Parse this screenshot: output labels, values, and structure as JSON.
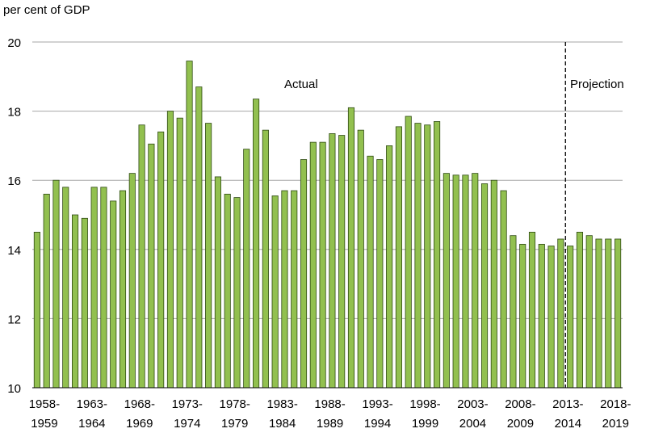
{
  "chart_data": {
    "type": "bar",
    "ylabel": "per cent of GDP",
    "ylim": [
      10,
      20
    ],
    "yticks": [
      10,
      12,
      14,
      16,
      18,
      20
    ],
    "grid": true,
    "bar_color": "#92C04F",
    "bar_edge_color": "#2E4A12",
    "annotations": {
      "actual": "Actual",
      "projection": "Projection"
    },
    "divider_after_category": "2013-2014",
    "categories": [
      "1958-1959",
      "1959-1960",
      "1960-1961",
      "1961-1962",
      "1962-1963",
      "1963-1964",
      "1964-1965",
      "1965-1966",
      "1966-1967",
      "1967-1968",
      "1968-1969",
      "1969-1970",
      "1970-1971",
      "1971-1972",
      "1972-1973",
      "1973-1974",
      "1974-1975",
      "1975-1976",
      "1976-1977",
      "1977-1978",
      "1978-1979",
      "1979-1980",
      "1980-1981",
      "1981-1982",
      "1982-1983",
      "1983-1984",
      "1984-1985",
      "1985-1986",
      "1986-1987",
      "1987-1988",
      "1988-1989",
      "1989-1990",
      "1990-1991",
      "1991-1992",
      "1992-1993",
      "1993-1994",
      "1994-1995",
      "1995-1996",
      "1996-1997",
      "1997-1998",
      "1998-1999",
      "1999-2000",
      "2000-2001",
      "2001-2002",
      "2002-2003",
      "2003-2004",
      "2004-2005",
      "2005-2006",
      "2006-2007",
      "2007-2008",
      "2008-2009",
      "2009-2010",
      "2010-2011",
      "2011-2012",
      "2012-2013",
      "2013-2014",
      "2014-2015",
      "2015-2016",
      "2016-2017",
      "2017-2018",
      "2018-2019",
      "2019-2020"
    ],
    "values": [
      14.5,
      15.6,
      16.0,
      15.8,
      15.0,
      14.9,
      15.8,
      15.8,
      15.4,
      15.7,
      16.2,
      17.6,
      17.05,
      17.4,
      18.0,
      17.8,
      19.45,
      18.7,
      17.65,
      16.1,
      15.6,
      15.5,
      16.9,
      18.35,
      17.45,
      15.55,
      15.7,
      15.7,
      16.6,
      17.1,
      17.1,
      17.35,
      17.3,
      18.1,
      17.45,
      16.7,
      16.6,
      17.0,
      17.55,
      17.85,
      17.65,
      17.6,
      17.7,
      16.2,
      16.15,
      16.15,
      16.2,
      15.9,
      16.0,
      15.7,
      14.4,
      14.15,
      14.5,
      14.15,
      14.1,
      14.3,
      14.1,
      14.5,
      14.4,
      14.3,
      14.3,
      14.3
    ],
    "xtick_labels": [
      {
        "index": 0,
        "line1": "1958-",
        "line2": "1959"
      },
      {
        "index": 5,
        "line1": "1963-",
        "line2": "1964"
      },
      {
        "index": 10,
        "line1": "1968-",
        "line2": "1969"
      },
      {
        "index": 15,
        "line1": "1973-",
        "line2": "1974"
      },
      {
        "index": 20,
        "line1": "1978-",
        "line2": "1979"
      },
      {
        "index": 25,
        "line1": "1983-",
        "line2": "1984"
      },
      {
        "index": 30,
        "line1": "1988-",
        "line2": "1989"
      },
      {
        "index": 35,
        "line1": "1993-",
        "line2": "1994"
      },
      {
        "index": 40,
        "line1": "1998-",
        "line2": "1999"
      },
      {
        "index": 45,
        "line1": "2003-",
        "line2": "2004"
      },
      {
        "index": 50,
        "line1": "2008-",
        "line2": "2009"
      },
      {
        "index": 55,
        "line1": "2013-",
        "line2": "2014"
      },
      {
        "index": 60,
        "line1": "2018-",
        "line2": "2019"
      }
    ]
  }
}
